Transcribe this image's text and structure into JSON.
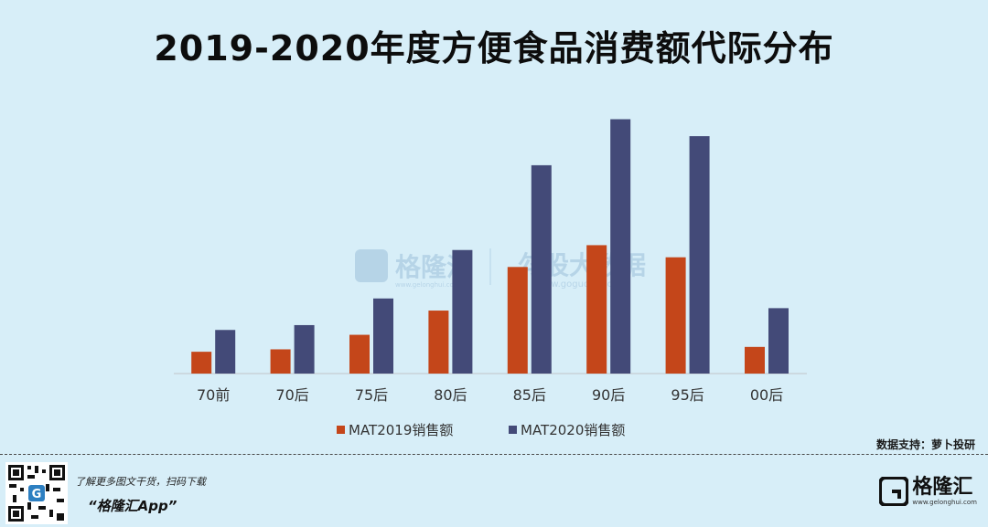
{
  "title": "2019-2020年度方便食品消费额代际分布",
  "chart_data": {
    "type": "bar",
    "categories": [
      "70前",
      "70后",
      "75后",
      "80后",
      "85后",
      "90后",
      "95后",
      "00后"
    ],
    "series": [
      {
        "name": "MAT2019销售额",
        "values": [
          9,
          10,
          16,
          26,
          44,
          53,
          48,
          11
        ],
        "color": "#c4461a"
      },
      {
        "name": "MAT2020销售额",
        "values": [
          18,
          20,
          31,
          51,
          86,
          105,
          98,
          27
        ],
        "color": "#434a78"
      }
    ],
    "ylim": [
      0,
      115
    ],
    "grid": false,
    "legend_position": "bottom"
  },
  "watermark": {
    "center_left": "格隆汇",
    "center_left_url": "www.gelonghui.com",
    "center_right": "勾股大数据",
    "center_right_url": "www.gogudata.com"
  },
  "source": "数据支持：萝卜投研",
  "footer": {
    "tagline": "了解更多图文干货，扫码下载",
    "app": "“格隆汇App”",
    "brand": "格隆汇",
    "brand_url": "www.gelonghui.com"
  }
}
